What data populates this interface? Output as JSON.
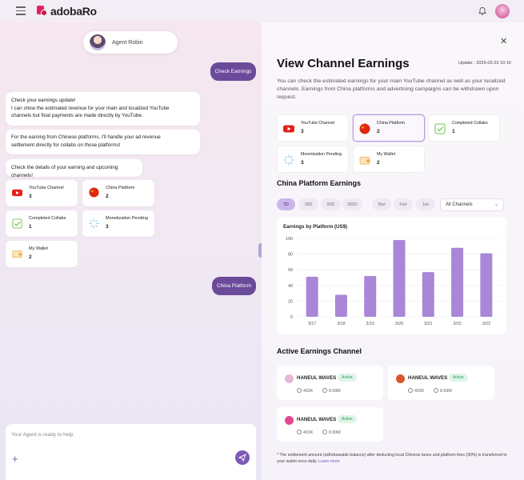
{
  "header": {
    "brand": "adobaRo"
  },
  "chat": {
    "agent_name": "Agent Robin",
    "user_messages": [
      "Check Earnings",
      "China Platform"
    ],
    "bot_msg_1": [
      "Check your earnings update!",
      "I can show the estimated revenue for your main and localized YouTube",
      "channels but final payments are made directly by YouTube."
    ],
    "bot_msg_2": [
      "For the earning from Chinese platforms, I'll handle your ad revenue",
      "settlement directly for collabs on those platforms!"
    ],
    "bot_msg_3": "Check the details of your earning and upcoming channels!",
    "cards": [
      {
        "label": "YouTube Channel",
        "value": "3",
        "icon": "youtube-icon"
      },
      {
        "label": "China Platform",
        "value": "2",
        "icon": "china-flag-icon"
      },
      {
        "label": "Completed Collabs",
        "value": "1",
        "icon": "check-icon"
      },
      {
        "label": "Monetization Pending",
        "value": "3",
        "icon": "spinner-icon"
      },
      {
        "label": "My Wallet",
        "value": "2",
        "icon": "wallet-icon"
      }
    ],
    "input_placeholder": "Your Agent is ready to help"
  },
  "panel": {
    "title": "View Channel Earnings",
    "update": "Update : 2025-03-23 10:10",
    "description": [
      "You can check the estimated earnings for your main YouTube channel as well as your localized",
      "channels. Earnings from China platforms and advertising campaigns can be withdrawn upon",
      "request."
    ],
    "stats": [
      {
        "label": "YouTube Channel",
        "value": "3",
        "icon": "youtube-icon"
      },
      {
        "label": "China Platform",
        "value": "2",
        "icon": "china-flag-icon",
        "selected": true
      },
      {
        "label": "Completed Collabs",
        "value": "1",
        "icon": "check-icon"
      },
      {
        "label": "Monetization Pending",
        "value": "3",
        "icon": "spinner-icon"
      },
      {
        "label": "My Wallet",
        "value": "2",
        "icon": "wallet-icon"
      }
    ],
    "section_china": "China Platform Earnings",
    "filters": [
      "7D",
      "28D",
      "90D",
      "365D",
      "Mar",
      "Feb",
      "Jan"
    ],
    "active_filter": "7D",
    "channel_select": "All Channels",
    "section_active": "Active Earnings Channel",
    "channels": [
      {
        "name": "HANEUL WAVES",
        "status": "Active",
        "subs": "403K",
        "views": "8.99M",
        "color": "#e7b6d8"
      },
      {
        "name": "HANEUL WAVES",
        "status": "Active",
        "subs": "403K",
        "views": "8.99M",
        "color": "#d9562c"
      },
      {
        "name": "HANEUL WAVES",
        "status": "Active",
        "subs": "403K",
        "views": "8.99M",
        "color": "#e04a8e"
      }
    ],
    "footnote": "* The settlement amount (withdrawable balance) after deducting local Chinese taxes and platform fees (30%) is transferred to your wallet once daily.",
    "learn_more": "Learn more"
  },
  "chart_data": {
    "type": "bar",
    "title": "Earnings by Platform (US$)",
    "categories": [
      "3/17",
      "3/18",
      "3/19",
      "3/20",
      "3/21",
      "3/22",
      "3/23"
    ],
    "values": [
      51,
      28,
      52,
      98,
      57,
      88,
      81
    ],
    "ylim": [
      0,
      100
    ],
    "yticks": [
      0,
      20,
      40,
      60,
      80,
      100
    ],
    "color": "#a987d6",
    "grid": true
  }
}
